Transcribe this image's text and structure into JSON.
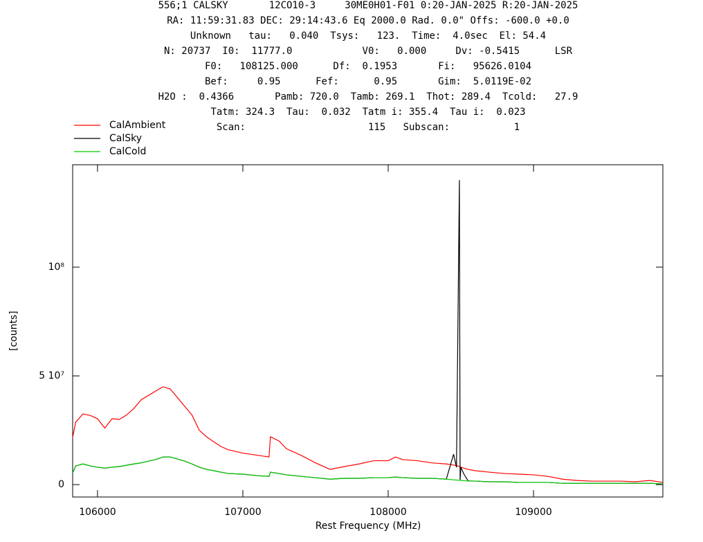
{
  "chart_data": {
    "type": "line",
    "annotations": [
      "556;1 CALSKY       12CO10-3     30ME0H01-F01 0:20-JAN-2025 R:20-JAN-2025",
      "RA: 11:59:31.83 DEC: 29:14:43.6 Eq 2000.0 Rad. 0.0\" Offs: -600.0 +0.0",
      "Unknown   tau:   0.040  Tsys:   123.  Time:  4.0sec  El: 54.4",
      "N: 20737  I0:  11777.0            V0:   0.000     Dv: -0.5415      LSR",
      "F0:   108125.000      Df:  0.1953       Fi:   95626.0104",
      "Bef:     0.95      Fef:      0.95       Gim:  5.0119E-02",
      "H2O :  0.4366       Pamb: 720.0  Tamb: 269.1  Thot: 289.4  Tcold:   27.9",
      "Tatm: 324.3  Tau:  0.032  Tatm i: 355.4  Tau i:  0.023",
      "Scan:                     115   Subscan:           1"
    ],
    "x_label": "Rest Frequency (MHz)",
    "y_label": "[counts]",
    "x": [
      105829,
      105850,
      105900,
      105950,
      106000,
      106050,
      106100,
      106150,
      106200,
      106250,
      106300,
      106350,
      106400,
      106450,
      106500,
      106550,
      106600,
      106650,
      106700,
      106750,
      106800,
      106850,
      106900,
      107000,
      107100,
      107180,
      107190,
      107250,
      107300,
      107400,
      107500,
      107600,
      107700,
      107800,
      107900,
      108000,
      108050,
      108100,
      108200,
      108300,
      108400,
      108450,
      108470,
      108490,
      108495,
      108500,
      108520,
      108550,
      108600,
      108700,
      108800,
      108900,
      109000,
      109100,
      109200,
      109300,
      109400,
      109500,
      109600,
      109700,
      109800,
      109890
    ],
    "series": [
      {
        "name": "CalAmbient",
        "color": "#ff0000",
        "values": [
          21700000,
          28700000,
          32500000,
          31800000,
          30300000,
          26000000,
          30300000,
          30000000,
          32000000,
          35000000,
          39000000,
          41000000,
          43000000,
          45000000,
          44000000,
          40000000,
          36000000,
          32000000,
          25000000,
          22000000,
          19700000,
          17500000,
          16000000,
          14500000,
          13500000,
          12700000,
          22000000,
          20000000,
          16500000,
          13500000,
          10000000,
          7000000,
          8300000,
          9500000,
          11000000,
          11000000,
          12700000,
          11500000,
          11000000,
          10000000,
          9500000,
          9000000,
          8700000,
          8400000,
          8300000,
          8000000,
          7600000,
          7000000,
          6400000,
          5700000,
          5100000,
          4800000,
          4500000,
          3800000,
          2500000,
          1900000,
          1600000,
          1600000,
          1600000,
          1300000,
          1900000,
          1000000
        ]
      },
      {
        "name": "CalSky",
        "color": "#000000",
        "values": [
          5400000,
          8600000,
          9500000,
          8600000,
          8000000,
          7600000,
          8000000,
          8300000,
          8900000,
          9500000,
          10000000,
          10800000,
          11500000,
          12700000,
          12700000,
          11800000,
          10800000,
          9500000,
          8000000,
          7000000,
          6400000,
          5700000,
          5100000,
          4800000,
          4100000,
          3800000,
          5700000,
          5100000,
          4500000,
          3800000,
          3200000,
          2500000,
          2900000,
          2900000,
          3200000,
          3200000,
          3500000,
          3200000,
          2900000,
          2900000,
          2500000,
          14000000,
          8000000,
          140000000,
          2000000,
          8000000,
          5000000,
          1700000,
          1600000,
          1300000,
          1300000,
          1000000,
          1000000,
          1000000,
          600000,
          600000,
          600000,
          600000,
          600000,
          600000,
          600000,
          300000
        ]
      },
      {
        "name": "CalCold",
        "color": "#00cc00",
        "values": [
          5400000,
          8600000,
          9500000,
          8600000,
          8000000,
          7600000,
          8000000,
          8300000,
          8900000,
          9500000,
          10000000,
          10800000,
          11500000,
          12700000,
          12700000,
          11800000,
          10800000,
          9500000,
          8000000,
          7000000,
          6400000,
          5700000,
          5100000,
          4800000,
          4100000,
          3800000,
          5700000,
          5100000,
          4500000,
          3800000,
          3200000,
          2500000,
          2900000,
          2900000,
          3200000,
          3200000,
          3500000,
          3200000,
          2900000,
          2900000,
          2500000,
          2200000,
          2100000,
          2000000,
          2000000,
          1900000,
          1800000,
          1700000,
          1600000,
          1300000,
          1300000,
          1000000,
          1000000,
          1000000,
          600000,
          600000,
          600000,
          600000,
          600000,
          600000,
          600000,
          300000
        ]
      }
    ],
    "xlim": [
      105829,
      109890
    ],
    "xticks": [
      106000,
      107000,
      108000,
      109000
    ],
    "ylim": [
      -5700000,
      147100000
    ],
    "yticks": [
      0,
      {
        "value": 50000000,
        "label": "5 10⁷"
      },
      {
        "value": 100000000,
        "label": "10⁸"
      }
    ],
    "grid": false,
    "legend": "top-left"
  }
}
